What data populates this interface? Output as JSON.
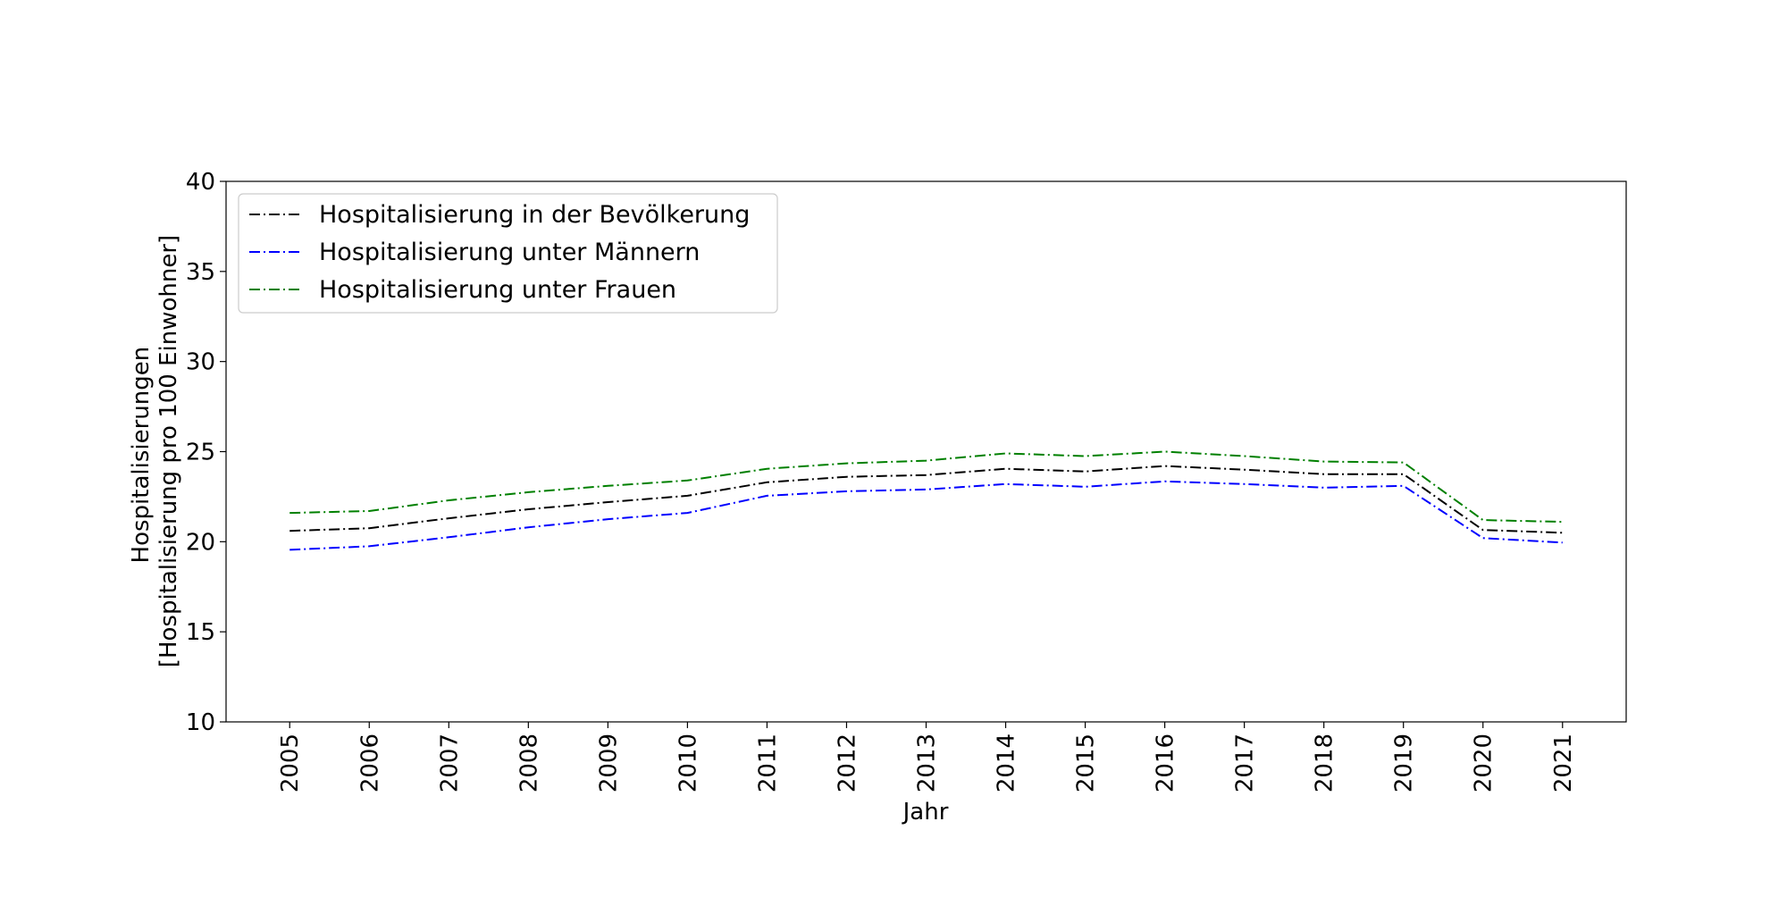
{
  "chart_data": {
    "type": "line",
    "title": "",
    "xlabel": "Jahr",
    "ylabel_lines": [
      "Hospitalisierungen",
      "[Hospitalisierung pro 100 Einwohner]"
    ],
    "x": [
      2005,
      2006,
      2007,
      2008,
      2009,
      2010,
      2011,
      2012,
      2013,
      2014,
      2015,
      2016,
      2017,
      2018,
      2019,
      2020,
      2021
    ],
    "x_tick_labels": [
      "2005",
      "2006",
      "2007",
      "2008",
      "2009",
      "2010",
      "2011",
      "2012",
      "2013",
      "2014",
      "2015",
      "2016",
      "2017",
      "2018",
      "2019",
      "2020",
      "2021"
    ],
    "x_tick_rotation": "vertical",
    "xlim": [
      2004.2,
      2021.8
    ],
    "ylim": [
      10,
      40
    ],
    "y_ticks": [
      10,
      15,
      20,
      25,
      30,
      35,
      40
    ],
    "y_tick_labels": [
      "10",
      "15",
      "20",
      "25",
      "30",
      "35",
      "40"
    ],
    "grid": false,
    "legend_position": "top-left",
    "line_style": "dash-dot",
    "series": [
      {
        "name": "Hospitalisierung in der Bevölkerung",
        "color": "#000000",
        "values": [
          20.6,
          20.75,
          21.3,
          21.8,
          22.2,
          22.55,
          23.3,
          23.6,
          23.7,
          24.05,
          23.9,
          24.2,
          24.0,
          23.75,
          23.75,
          20.65,
          20.5
        ]
      },
      {
        "name": "Hospitalisierung unter Männern",
        "color": "#0000ff",
        "values": [
          19.55,
          19.75,
          20.25,
          20.8,
          21.25,
          21.6,
          22.55,
          22.8,
          22.9,
          23.2,
          23.05,
          23.35,
          23.2,
          23.0,
          23.1,
          20.2,
          19.95
        ]
      },
      {
        "name": "Hospitalisierung unter Frauen",
        "color": "#008000",
        "values": [
          21.6,
          21.7,
          22.3,
          22.75,
          23.1,
          23.4,
          24.05,
          24.35,
          24.5,
          24.9,
          24.75,
          25.0,
          24.75,
          24.45,
          24.4,
          21.2,
          21.1
        ]
      }
    ]
  }
}
